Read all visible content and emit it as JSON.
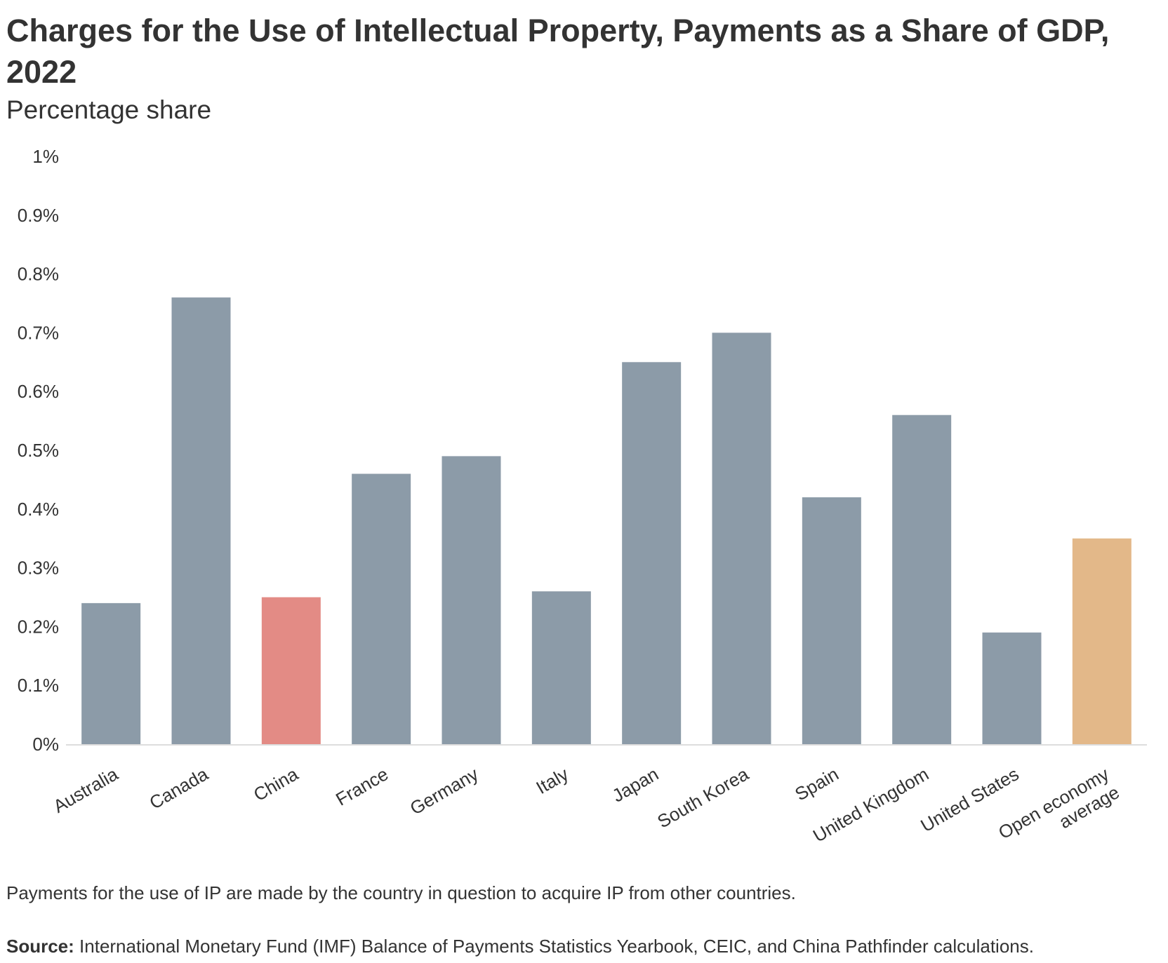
{
  "chart_data": {
    "type": "bar",
    "title": "Charges for the Use of Intellectual Property, Payments as a Share of GDP, 2022",
    "subtitle": "Percentage share",
    "xlabel": "",
    "ylabel": "",
    "ylim": [
      0,
      1
    ],
    "yticks": [
      0,
      0.1,
      0.2,
      0.3,
      0.4,
      0.5,
      0.6,
      0.7,
      0.8,
      0.9,
      1
    ],
    "ytick_labels": [
      "0%",
      "0.1%",
      "0.2%",
      "0.3%",
      "0.4%",
      "0.5%",
      "0.6%",
      "0.7%",
      "0.8%",
      "0.9%",
      "1%"
    ],
    "grid": false,
    "categories": [
      "Australia",
      "Canada",
      "China",
      "France",
      "Germany",
      "Italy",
      "Japan",
      "South Korea",
      "Spain",
      "United Kingdom",
      "United States",
      "Open economy average"
    ],
    "category_lines": [
      [
        "Australia"
      ],
      [
        "Canada"
      ],
      [
        "China"
      ],
      [
        "France"
      ],
      [
        "Germany"
      ],
      [
        "Italy"
      ],
      [
        "Japan"
      ],
      [
        "South Korea"
      ],
      [
        "Spain"
      ],
      [
        "United Kingdom"
      ],
      [
        "United States"
      ],
      [
        "Open economy",
        "average"
      ]
    ],
    "values": [
      0.24,
      0.76,
      0.25,
      0.46,
      0.49,
      0.26,
      0.65,
      0.7,
      0.42,
      0.56,
      0.19,
      0.35
    ],
    "colors": {
      "default": "#8c9ba8",
      "highlight": "#e38b85",
      "average": "#e3b889",
      "axis": "#dddddd",
      "tick_text": "#333333"
    },
    "bar_color_keys": [
      "default",
      "default",
      "highlight",
      "default",
      "default",
      "default",
      "default",
      "default",
      "default",
      "default",
      "default",
      "average"
    ],
    "note": "Payments for the use of IP are made by the country in question to acquire IP from other countries.",
    "source_label": "Source:",
    "source_text": " International Monetary Fund (IMF) Balance of Payments Statistics Yearbook, CEIC, and China Pathfinder calculations."
  }
}
